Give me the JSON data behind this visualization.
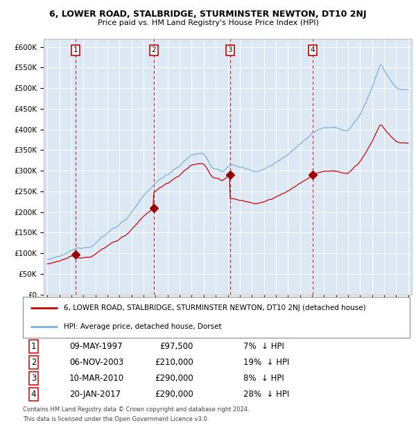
{
  "title": "6, LOWER ROAD, STALBRIDGE, STURMINSTER NEWTON, DT10 2NJ",
  "subtitle": "Price paid vs. HM Land Registry's House Price Index (HPI)",
  "plot_bg_color": "#dce9f5",
  "ylim": [
    0,
    620000
  ],
  "yticks": [
    0,
    50000,
    100000,
    150000,
    200000,
    250000,
    300000,
    350000,
    400000,
    450000,
    500000,
    550000,
    600000
  ],
  "ytick_labels": [
    "£0",
    "£50K",
    "£100K",
    "£150K",
    "£200K",
    "£250K",
    "£300K",
    "£350K",
    "£400K",
    "£450K",
    "£500K",
    "£550K",
    "£600K"
  ],
  "hpi_color": "#7bafd4",
  "sale_color": "#cc0000",
  "sale_marker_color": "#990000",
  "vline_color": "#cc0000",
  "grid_color": "#ffffff",
  "transactions": [
    {
      "num": 1,
      "date_str": "09-MAY-1997",
      "year": 1997.36,
      "price": 97500,
      "pct": "7%",
      "dir": "↓"
    },
    {
      "num": 2,
      "date_str": "06-NOV-2003",
      "year": 2003.84,
      "price": 210000,
      "pct": "19%",
      "dir": "↓"
    },
    {
      "num": 3,
      "date_str": "10-MAR-2010",
      "year": 2010.19,
      "price": 290000,
      "pct": "8%",
      "dir": "↓"
    },
    {
      "num": 4,
      "date_str": "20-JAN-2017",
      "year": 2017.05,
      "price": 290000,
      "pct": "28%",
      "dir": "↓"
    }
  ],
  "footer_line1": "Contains HM Land Registry data © Crown copyright and database right 2024.",
  "footer_line2": "This data is licensed under the Open Government Licence v3.0.",
  "legend_entry1": "6, LOWER ROAD, STALBRIDGE, STURMINSTER NEWTON, DT10 2NJ (detached house)",
  "legend_entry2": "HPI: Average price, detached house, Dorset",
  "xmin": 1994.7,
  "xmax": 2025.3
}
